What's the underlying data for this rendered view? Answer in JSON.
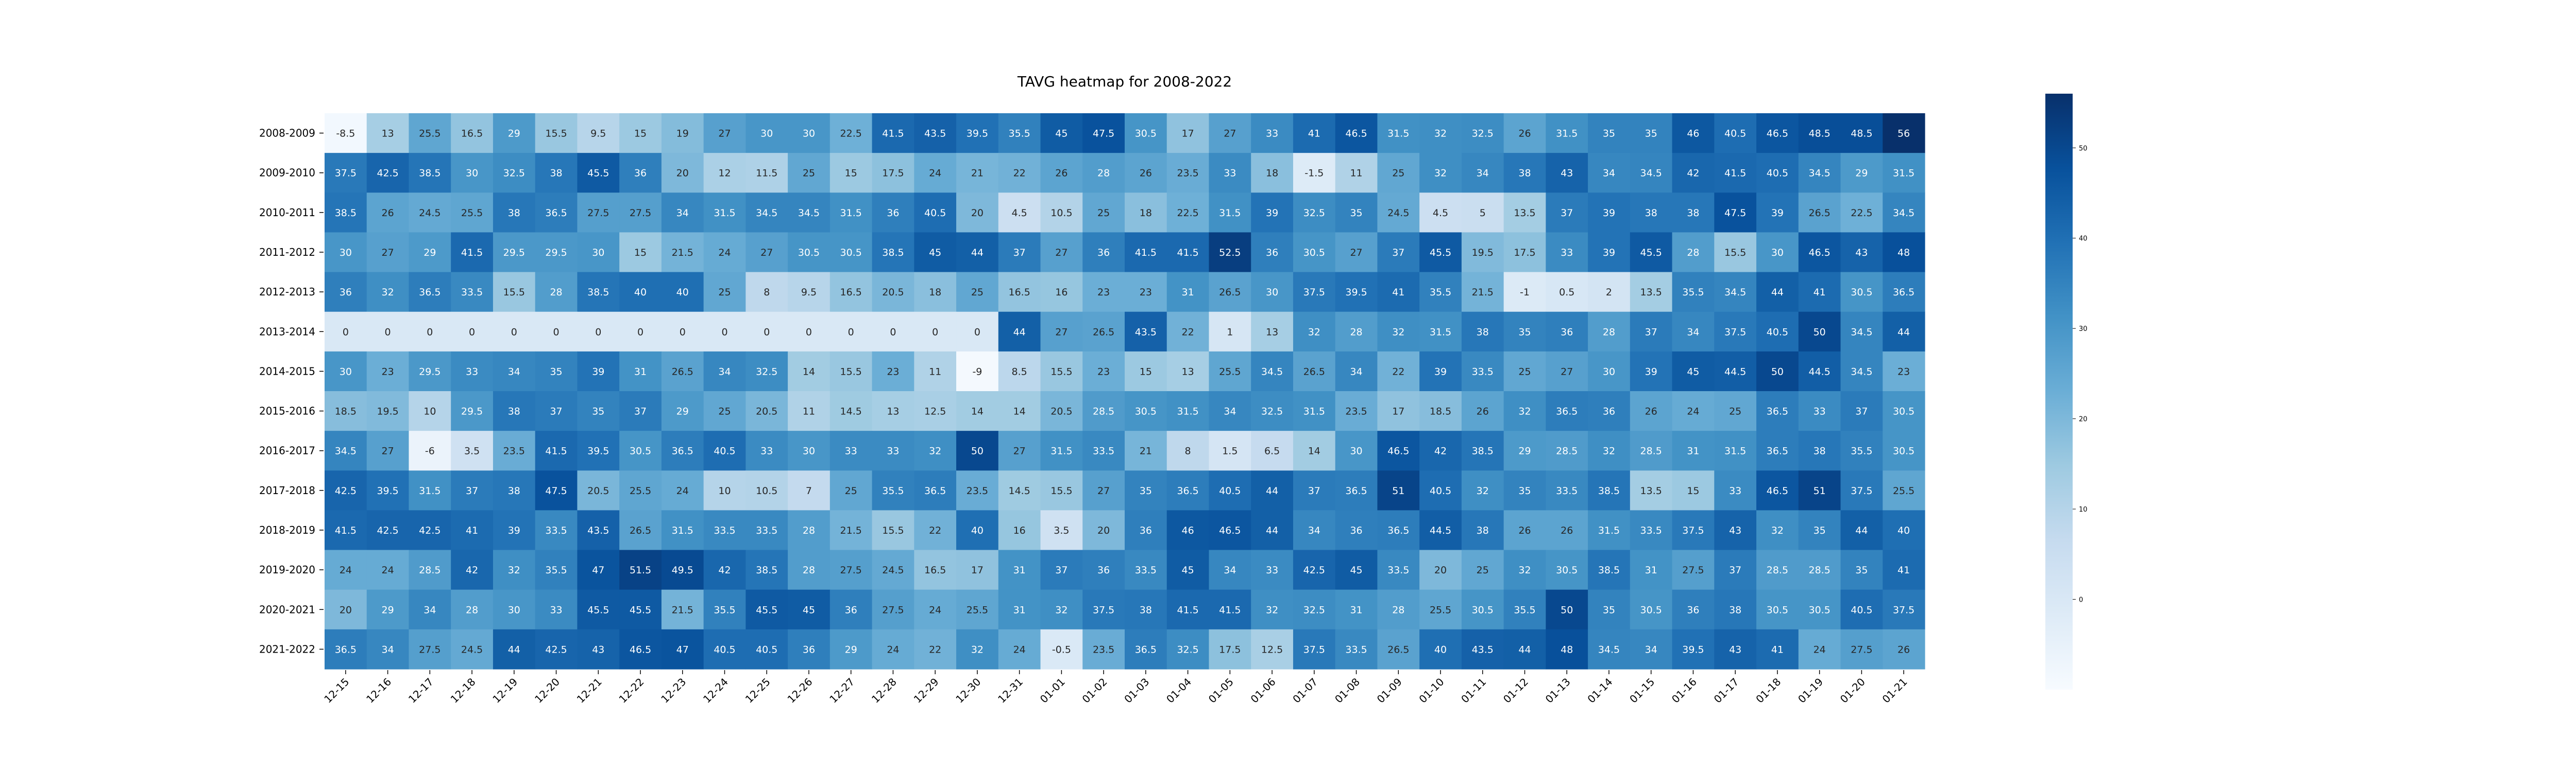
{
  "chart_data": {
    "type": "heatmap",
    "title": "TAVG heatmap for 2008-2022",
    "xlabel": "",
    "ylabel": "",
    "colormap": "Blues",
    "colorbar": {
      "min": -10,
      "max": 56,
      "ticks": [
        0,
        10,
        20,
        30,
        40,
        50
      ]
    },
    "columns": [
      "12-15",
      "12-16",
      "12-17",
      "12-18",
      "12-19",
      "12-20",
      "12-21",
      "12-22",
      "12-23",
      "12-24",
      "12-25",
      "12-26",
      "12-27",
      "12-28",
      "12-29",
      "12-30",
      "12-31",
      "01-01",
      "01-02",
      "01-03",
      "01-04",
      "01-05",
      "01-06",
      "01-07",
      "01-08",
      "01-09",
      "01-10",
      "01-11",
      "01-12",
      "01-13",
      "01-14",
      "01-15",
      "01-16",
      "01-17",
      "01-18",
      "01-19",
      "01-20",
      "01-21"
    ],
    "rows": [
      "2008-2009",
      "2009-2010",
      "2010-2011",
      "2011-2012",
      "2012-2013",
      "2013-2014",
      "2014-2015",
      "2015-2016",
      "2016-2017",
      "2017-2018",
      "2018-2019",
      "2019-2020",
      "2020-2021",
      "2021-2022"
    ],
    "values": [
      [
        -8.5,
        13,
        25.5,
        16.5,
        29,
        15.5,
        9.5,
        15,
        19,
        27,
        30,
        30,
        22.5,
        41.5,
        43.5,
        39.5,
        35.5,
        45,
        47.5,
        30.5,
        17,
        27,
        33,
        41,
        46.5,
        31.5,
        32,
        32.5,
        26,
        31.5,
        35,
        35,
        46,
        40.5,
        46.5,
        48.5,
        48.5,
        56
      ],
      [
        37.5,
        42.5,
        38.5,
        30,
        32.5,
        38,
        45.5,
        36,
        20,
        12,
        11.5,
        25,
        15,
        17.5,
        24,
        21,
        22,
        26,
        28,
        26,
        23.5,
        33,
        18,
        -1.5,
        11,
        25,
        32,
        34,
        38,
        43,
        34,
        34.5,
        42,
        41.5,
        40.5,
        34.5,
        29,
        31.5
      ],
      [
        38.5,
        26,
        24.5,
        25.5,
        38,
        36.5,
        27.5,
        27.5,
        34,
        31.5,
        34.5,
        34.5,
        31.5,
        36,
        40.5,
        20,
        4.5,
        10.5,
        25,
        18,
        22.5,
        31.5,
        39,
        32.5,
        35,
        24.5,
        4.5,
        5,
        13.5,
        37,
        39,
        38,
        38,
        47.5,
        39,
        26.5,
        22.5,
        34.5
      ],
      [
        30,
        27,
        29,
        41.5,
        29.5,
        29.5,
        30,
        15,
        21.5,
        24,
        27,
        30.5,
        30.5,
        38.5,
        45,
        44,
        37,
        27,
        36,
        41.5,
        41.5,
        52.5,
        36,
        30.5,
        27,
        37,
        45.5,
        19.5,
        17.5,
        33,
        39,
        45.5,
        28,
        15.5,
        30,
        46.5,
        43,
        48
      ],
      [
        36,
        32,
        36.5,
        33.5,
        15.5,
        28,
        38.5,
        40,
        40,
        25,
        8,
        9.5,
        16.5,
        20.5,
        18,
        25,
        16.5,
        16,
        23,
        23,
        31,
        26.5,
        30,
        37.5,
        39.5,
        41,
        35.5,
        21.5,
        -1,
        0.5,
        2,
        13.5,
        35.5,
        34.5,
        44,
        41,
        30.5,
        36.5
      ],
      [
        0,
        0,
        0,
        0,
        0,
        0,
        0,
        0,
        0,
        0,
        0,
        0,
        0,
        0,
        0,
        0,
        44,
        27,
        26.5,
        43.5,
        22,
        1,
        13,
        32,
        28,
        32,
        31.5,
        38,
        35,
        36,
        28,
        37,
        34,
        37.5,
        40.5,
        50,
        34.5,
        44
      ],
      [
        30,
        23,
        29.5,
        33,
        34,
        35,
        39,
        31,
        26.5,
        34,
        32.5,
        14,
        15.5,
        23,
        11,
        -9,
        8.5,
        15.5,
        23,
        15,
        13,
        25.5,
        34.5,
        26.5,
        34,
        22,
        39,
        33.5,
        25,
        27,
        30,
        39,
        45,
        44.5,
        50,
        44.5,
        34.5,
        23
      ],
      [
        18.5,
        19.5,
        10,
        29.5,
        38,
        37,
        35,
        37,
        29,
        25,
        20.5,
        11,
        14.5,
        13,
        12.5,
        14,
        14,
        20.5,
        28.5,
        30.5,
        31.5,
        34,
        32.5,
        31.5,
        23.5,
        17,
        18.5,
        26,
        32,
        36.5,
        36,
        26,
        24,
        25,
        36.5,
        33,
        37,
        30.5
      ],
      [
        34.5,
        27,
        -6,
        3.5,
        23.5,
        41.5,
        39.5,
        30.5,
        36.5,
        40.5,
        33,
        30,
        33,
        33,
        32,
        50,
        27,
        31.5,
        33.5,
        21,
        8,
        1.5,
        6.5,
        14,
        30,
        46.5,
        42,
        38.5,
        29,
        28.5,
        32,
        28.5,
        31,
        31.5,
        36.5,
        38,
        35.5,
        30.5
      ],
      [
        42.5,
        39.5,
        31.5,
        37,
        38,
        47.5,
        20.5,
        25.5,
        24,
        10,
        10.5,
        7,
        25,
        35.5,
        36.5,
        23.5,
        14.5,
        15.5,
        27,
        35,
        36.5,
        40.5,
        44,
        37,
        36.5,
        51,
        40.5,
        32,
        35,
        33.5,
        38.5,
        13.5,
        15,
        33,
        46.5,
        51,
        37.5,
        25.5
      ],
      [
        41.5,
        42.5,
        42.5,
        41,
        39,
        33.5,
        43.5,
        26.5,
        31.5,
        33.5,
        33.5,
        28,
        21.5,
        15.5,
        22,
        40,
        16,
        3.5,
        20,
        36,
        46,
        46.5,
        44,
        34,
        36,
        36.5,
        44.5,
        38,
        26,
        26,
        31.5,
        33.5,
        37.5,
        43,
        32,
        35,
        44,
        40
      ],
      [
        24,
        24,
        28.5,
        42,
        32,
        35.5,
        47,
        51.5,
        49.5,
        42,
        38.5,
        28,
        27.5,
        24.5,
        16.5,
        17,
        31,
        37,
        36,
        33.5,
        45,
        34,
        33,
        42.5,
        45,
        33.5,
        20,
        25,
        32,
        30.5,
        38.5,
        31,
        27.5,
        37,
        28.5,
        28.5,
        35,
        41
      ],
      [
        20,
        29,
        34,
        28,
        30,
        33,
        45.5,
        45.5,
        21.5,
        35.5,
        45.5,
        45,
        36,
        27.5,
        24,
        25.5,
        31,
        32,
        37.5,
        38,
        41.5,
        41.5,
        32,
        32.5,
        31,
        28,
        25.5,
        30.5,
        35.5,
        50,
        35,
        30.5,
        36,
        38,
        30.5,
        30.5,
        40.5,
        37.5
      ],
      [
        36.5,
        34,
        27.5,
        24.5,
        44,
        42.5,
        43,
        46.5,
        47,
        40.5,
        40.5,
        36,
        29,
        24,
        22,
        32,
        24,
        -0.5,
        23.5,
        36.5,
        32.5,
        17.5,
        12.5,
        37.5,
        33.5,
        26.5,
        40,
        43.5,
        44,
        48,
        34.5,
        34,
        39.5,
        43,
        41,
        24,
        27.5,
        26
      ]
    ]
  }
}
